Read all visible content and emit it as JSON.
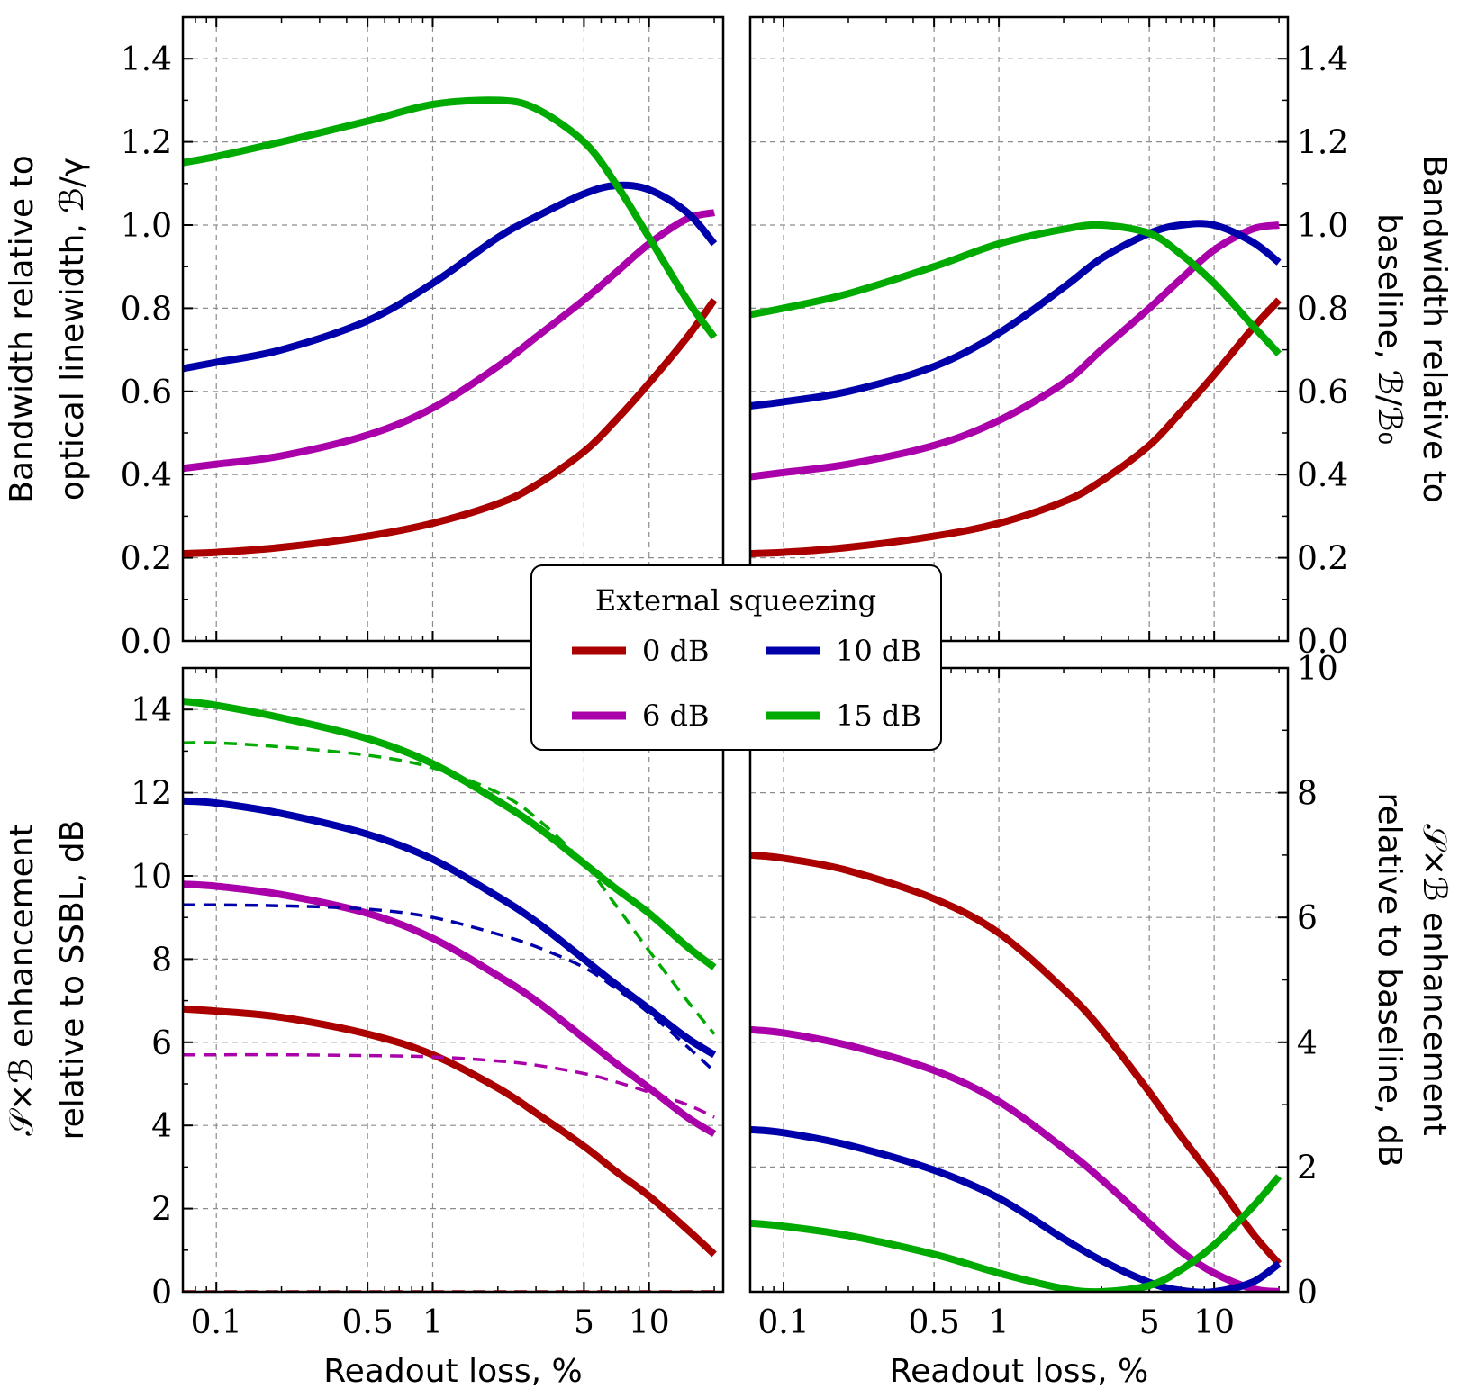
{
  "figure": {
    "legend": {
      "title": "External squeezing",
      "placement": "center",
      "entries": [
        {
          "label": "0 dB",
          "color": "#aa0000"
        },
        {
          "label": "10 dB",
          "color": "#0000aa"
        },
        {
          "label": "6 dB",
          "color": "#aa00aa"
        },
        {
          "label": "15 dB",
          "color": "#00aa00"
        }
      ]
    }
  },
  "chart_data": [
    {
      "type": "line",
      "panel": "top-left",
      "xscale": "log",
      "xlim": [
        0.07,
        22
      ],
      "ylim": [
        0,
        1.5
      ],
      "xticks": [
        0.1,
        0.5,
        1,
        5,
        10
      ],
      "xtick_labels": [
        "0.1",
        "0.5",
        "1",
        "5",
        "10"
      ],
      "yticks": [
        0,
        0.2,
        0.4,
        0.6,
        0.8,
        1.0,
        1.2,
        1.4
      ],
      "ytick_labels": [
        "0.0",
        "0.2",
        "0.4",
        "0.6",
        "0.8",
        "1.0",
        "1.2",
        "1.4"
      ],
      "ytick_side": "left",
      "xlabel": "",
      "ylabel_lines": [
        "Bandwidth relative to",
        "optical linewidth, ℬ/γ"
      ],
      "ylabel_side": "left",
      "x": [
        0.07,
        0.1,
        0.2,
        0.5,
        1,
        2,
        3,
        5,
        7,
        10,
        15,
        20
      ],
      "series": [
        {
          "name": "0 dB",
          "color": "#aa0000",
          "style": "solid",
          "values": [
            0.21,
            0.213,
            0.225,
            0.252,
            0.283,
            0.33,
            0.375,
            0.455,
            0.53,
            0.62,
            0.73,
            0.82
          ]
        },
        {
          "name": "6 dB",
          "color": "#aa00aa",
          "style": "solid",
          "values": [
            0.415,
            0.425,
            0.445,
            0.495,
            0.56,
            0.66,
            0.73,
            0.82,
            0.885,
            0.955,
            1.015,
            1.03
          ]
        },
        {
          "name": "10 dB",
          "color": "#0000aa",
          "style": "solid",
          "values": [
            0.655,
            0.67,
            0.7,
            0.77,
            0.86,
            0.97,
            1.02,
            1.075,
            1.095,
            1.085,
            1.03,
            0.955
          ]
        },
        {
          "name": "15 dB",
          "color": "#00aa00",
          "style": "solid",
          "values": [
            1.15,
            1.165,
            1.2,
            1.25,
            1.29,
            1.3,
            1.28,
            1.2,
            1.1,
            0.97,
            0.82,
            0.73
          ]
        }
      ]
    },
    {
      "type": "line",
      "panel": "top-right",
      "xscale": "log",
      "xlim": [
        0.07,
        22
      ],
      "ylim": [
        0,
        1.5
      ],
      "xticks": [
        0.1,
        0.5,
        1,
        5,
        10
      ],
      "xtick_labels": [
        "0.1",
        "0.5",
        "1",
        "5",
        "10"
      ],
      "yticks": [
        0,
        0.2,
        0.4,
        0.6,
        0.8,
        1.0,
        1.2,
        1.4
      ],
      "ytick_labels": [
        "0.0",
        "0.2",
        "0.4",
        "0.6",
        "0.8",
        "1.0",
        "1.2",
        "1.4"
      ],
      "ytick_side": "right",
      "xlabel": "",
      "ylabel_lines": [
        "Bandwidth relative to",
        "baseline, ℬ/ℬ₀"
      ],
      "ylabel_side": "right",
      "x": [
        0.07,
        0.1,
        0.2,
        0.5,
        1,
        2,
        3,
        5,
        7,
        10,
        15,
        20
      ],
      "series": [
        {
          "name": "0 dB",
          "color": "#aa0000",
          "style": "solid",
          "values": [
            0.21,
            0.213,
            0.225,
            0.252,
            0.283,
            0.335,
            0.385,
            0.47,
            0.55,
            0.64,
            0.75,
            0.82
          ]
        },
        {
          "name": "6 dB",
          "color": "#aa00aa",
          "style": "solid",
          "values": [
            0.395,
            0.405,
            0.425,
            0.47,
            0.53,
            0.62,
            0.7,
            0.8,
            0.87,
            0.94,
            0.99,
            1.0
          ]
        },
        {
          "name": "10 dB",
          "color": "#0000aa",
          "style": "solid",
          "values": [
            0.565,
            0.575,
            0.6,
            0.66,
            0.74,
            0.85,
            0.92,
            0.98,
            1.0,
            1.0,
            0.96,
            0.91
          ]
        },
        {
          "name": "15 dB",
          "color": "#00aa00",
          "style": "solid",
          "values": [
            0.785,
            0.8,
            0.835,
            0.9,
            0.955,
            0.99,
            1.0,
            0.98,
            0.93,
            0.86,
            0.76,
            0.69
          ]
        }
      ]
    },
    {
      "type": "line",
      "panel": "bottom-left",
      "xscale": "log",
      "xlim": [
        0.07,
        22
      ],
      "ylim": [
        0,
        15
      ],
      "xticks": [
        0.1,
        0.5,
        1,
        5,
        10
      ],
      "xtick_labels": [
        "0.1",
        "0.5",
        "1",
        "5",
        "10"
      ],
      "yticks": [
        0,
        2,
        4,
        6,
        8,
        10,
        12,
        14
      ],
      "ytick_labels": [
        "0",
        "2",
        "4",
        "6",
        "8",
        "10",
        "12",
        "14"
      ],
      "ytick_side": "left",
      "xlabel": "Readout loss, %",
      "ylabel_lines": [
        "𝒮×ℬ enhancement",
        "relative to SSBL, dB"
      ],
      "ylabel_side": "left",
      "x": [
        0.07,
        0.1,
        0.2,
        0.5,
        1,
        2,
        3,
        5,
        7,
        10,
        15,
        20
      ],
      "series": [
        {
          "name": "0 dB",
          "color": "#aa0000",
          "style": "solid",
          "values": [
            6.8,
            6.75,
            6.6,
            6.2,
            5.7,
            4.9,
            4.3,
            3.5,
            2.9,
            2.3,
            1.5,
            0.9
          ]
        },
        {
          "name": "6 dB",
          "color": "#aa00aa",
          "style": "solid",
          "values": [
            9.8,
            9.75,
            9.55,
            9.1,
            8.5,
            7.6,
            7.0,
            6.1,
            5.5,
            4.9,
            4.2,
            3.8
          ]
        },
        {
          "name": "10 dB",
          "color": "#0000aa",
          "style": "solid",
          "values": [
            11.8,
            11.75,
            11.5,
            11.0,
            10.4,
            9.5,
            8.9,
            8.0,
            7.4,
            6.8,
            6.1,
            5.7
          ]
        },
        {
          "name": "15 dB",
          "color": "#00aa00",
          "style": "solid",
          "values": [
            14.2,
            14.1,
            13.8,
            13.3,
            12.7,
            11.8,
            11.2,
            10.3,
            9.7,
            9.1,
            8.3,
            7.8
          ]
        },
        {
          "name": "0 dB (dashed)",
          "color": "#aa0000",
          "style": "dashed",
          "values": [
            0,
            0,
            0,
            0,
            0,
            0,
            0,
            0,
            0,
            0,
            0,
            0
          ]
        },
        {
          "name": "6 dB (dashed)",
          "color": "#aa00aa",
          "style": "dashed",
          "values": [
            5.7,
            5.7,
            5.7,
            5.68,
            5.65,
            5.55,
            5.45,
            5.25,
            5.05,
            4.8,
            4.5,
            4.2
          ]
        },
        {
          "name": "10 dB (dashed)",
          "color": "#0000aa",
          "style": "dashed",
          "values": [
            9.3,
            9.3,
            9.28,
            9.2,
            9.0,
            8.6,
            8.3,
            7.8,
            7.3,
            6.7,
            5.9,
            5.3
          ]
        },
        {
          "name": "15 dB (dashed)",
          "color": "#00aa00",
          "style": "dashed",
          "values": [
            13.2,
            13.2,
            13.1,
            12.9,
            12.6,
            12.0,
            11.4,
            10.3,
            9.3,
            8.2,
            7.0,
            6.2
          ]
        }
      ]
    },
    {
      "type": "line",
      "panel": "bottom-right",
      "xscale": "log",
      "xlim": [
        0.07,
        22
      ],
      "ylim": [
        0,
        10
      ],
      "xticks": [
        0.1,
        0.5,
        1,
        5,
        10
      ],
      "xtick_labels": [
        "0.1",
        "0.5",
        "1",
        "5",
        "10"
      ],
      "yticks": [
        0,
        2,
        4,
        6,
        8,
        10
      ],
      "ytick_labels": [
        "0",
        "2",
        "4",
        "6",
        "8",
        "10"
      ],
      "ytick_side": "right",
      "xlabel": "Readout loss, %",
      "ylabel_lines": [
        "𝒮×ℬ enhancement",
        "relative to baseline, dB"
      ],
      "ylabel_side": "right",
      "x": [
        0.07,
        0.1,
        0.2,
        0.5,
        1,
        2,
        3,
        5,
        7,
        10,
        15,
        20
      ],
      "series": [
        {
          "name": "0 dB",
          "color": "#aa0000",
          "style": "solid",
          "values": [
            7.0,
            6.95,
            6.75,
            6.3,
            5.75,
            4.85,
            4.2,
            3.2,
            2.5,
            1.8,
            0.95,
            0.45
          ]
        },
        {
          "name": "6 dB",
          "color": "#aa00aa",
          "style": "solid",
          "values": [
            4.2,
            4.15,
            3.95,
            3.55,
            3.05,
            2.3,
            1.8,
            1.1,
            0.65,
            0.3,
            0.05,
            0.0
          ]
        },
        {
          "name": "10 dB",
          "color": "#0000aa",
          "style": "solid",
          "values": [
            2.6,
            2.55,
            2.35,
            1.95,
            1.5,
            0.85,
            0.5,
            0.15,
            0.02,
            0.0,
            0.15,
            0.45
          ]
        },
        {
          "name": "15 dB",
          "color": "#00aa00",
          "style": "solid",
          "values": [
            1.1,
            1.05,
            0.9,
            0.6,
            0.3,
            0.05,
            0.0,
            0.1,
            0.35,
            0.75,
            1.35,
            1.85
          ]
        }
      ]
    }
  ]
}
